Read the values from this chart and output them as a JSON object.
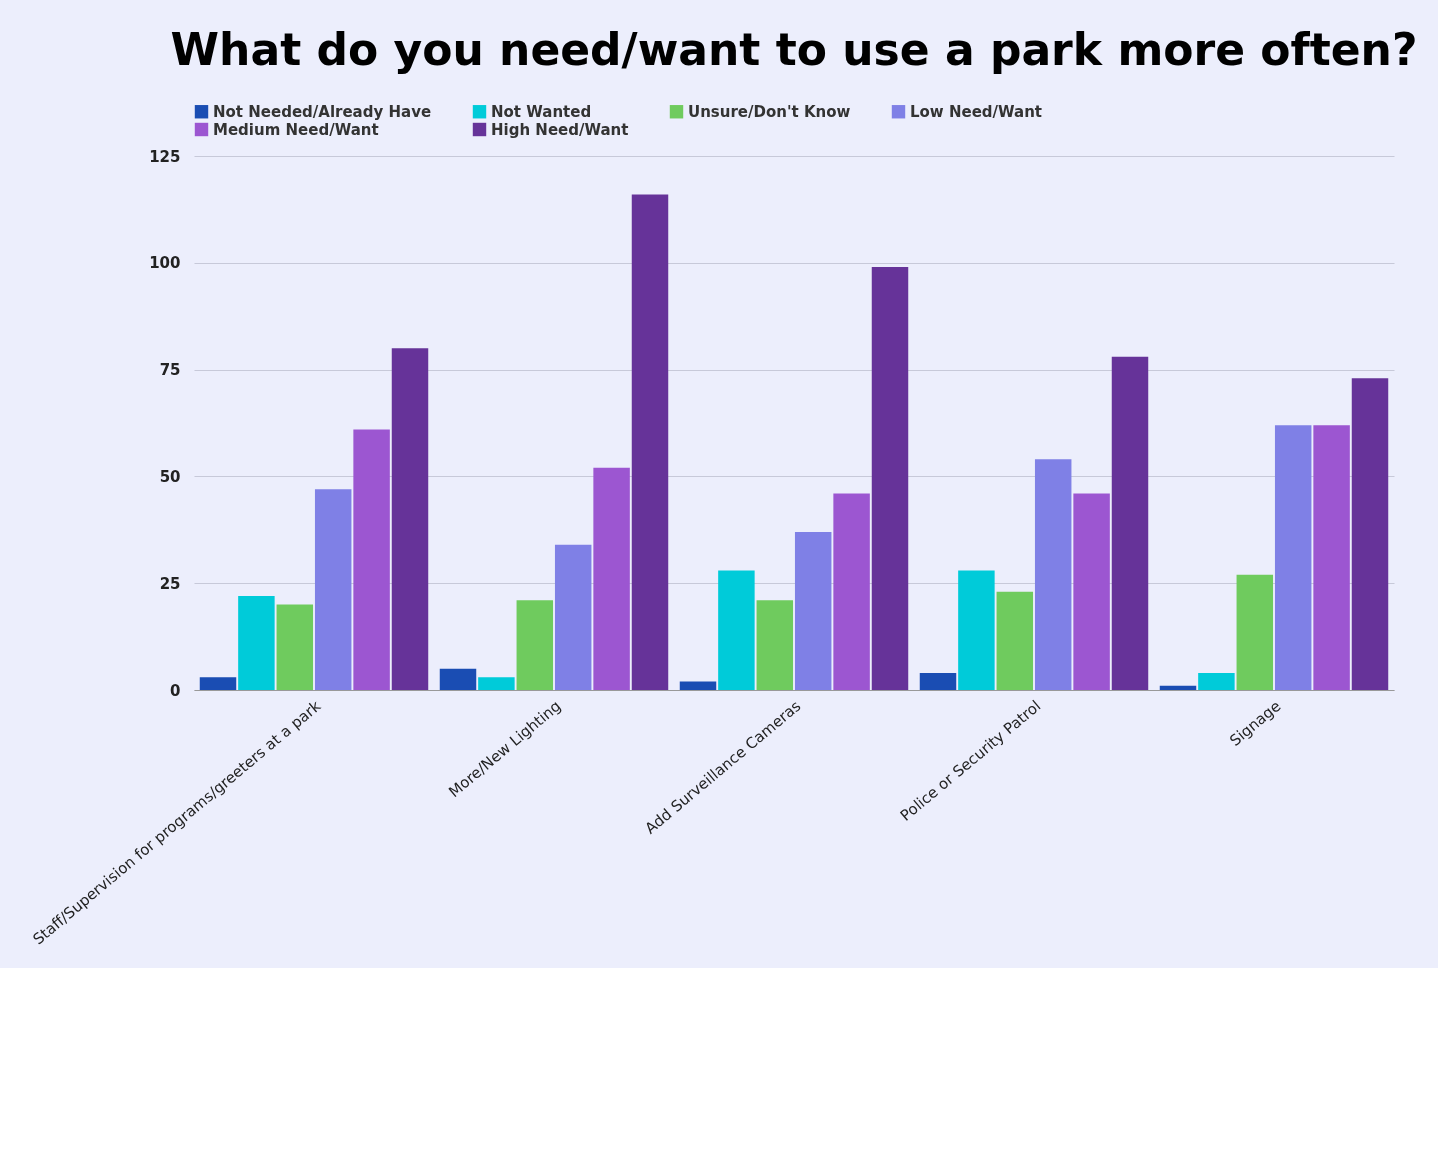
{
  "chart_data": {
    "type": "bar",
    "title": "What do you need/want to use a park more often?",
    "categories": [
      "Staff/Supervision for programs/greeters at a park",
      "More/New Lighting",
      "Add Surveillance Cameras",
      "Police or Security Patrol",
      "Signage"
    ],
    "series": [
      {
        "name": "Not Needed/Already Have",
        "color": "#1a4db3",
        "values": [
          3,
          5,
          2,
          4,
          1
        ]
      },
      {
        "name": "Not Wanted",
        "color": "#00cbd9",
        "values": [
          22,
          3,
          28,
          28,
          4
        ]
      },
      {
        "name": "Unsure/Don't Know",
        "color": "#6fcb5e",
        "values": [
          20,
          21,
          21,
          23,
          27
        ]
      },
      {
        "name": "Low Need/Want",
        "color": "#7f80e6",
        "values": [
          47,
          34,
          37,
          54,
          62
        ]
      },
      {
        "name": "Medium Need/Want",
        "color": "#9c56d1",
        "values": [
          61,
          52,
          46,
          46,
          62
        ]
      },
      {
        "name": "High Need/Want",
        "color": "#663399",
        "values": [
          80,
          116,
          99,
          78,
          73
        ]
      }
    ],
    "ylim": [
      0,
      125
    ],
    "yticks": [
      0,
      25,
      50,
      75,
      100,
      125
    ],
    "grid": "y",
    "legend": "top"
  }
}
